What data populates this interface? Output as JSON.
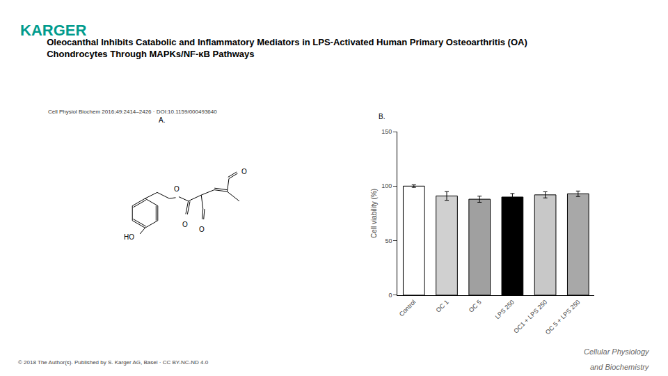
{
  "chart_data": {
    "type": "bar",
    "title": "Oleocanthal Inhibits Catabolic and Inflammatory Mediators in LPS-Activated Human Primary Osteoarthritis (OA)\nChondrocytes Through MAPKs/NF-κB Pathways",
    "subtitle": "Cell Physiol Biochem 2016;49:2414–2426 · DOI:10.1159/000493640",
    "categories": [
      "Control",
      "OC 1",
      "OC 5",
      "LPS 250",
      "OC1 + LPS 250",
      "OC 5 + LPS 250"
    ],
    "values": [
      100,
      91,
      88,
      90,
      92,
      93
    ],
    "errors": [
      1.2,
      4.0,
      2.8,
      3.2,
      2.8,
      2.5
    ],
    "colors": [
      "#ffffff",
      "#d0d0d0",
      "#a0a0a0",
      "#000000",
      "#c8c8c8",
      "#a8a8a8"
    ],
    "edgecolor": "#000000",
    "ylabel": "Cell viability (%)",
    "ylim": [
      0,
      150
    ],
    "yticks": [
      0,
      50,
      100,
      150
    ],
    "grid": false,
    "annotations": [
      {
        "text": "KARGER",
        "color": "#009B8D"
      },
      {
        "text": "A."
      },
      {
        "text": "B."
      },
      {
        "text": "HO"
      },
      {
        "text": "O"
      },
      {
        "text": "O"
      },
      {
        "text": "O"
      },
      {
        "text": "O"
      },
      {
        "text": "© 2018 The Author(s). Published by S. Karger AG, Basel · CC BY-NC-ND 4.0"
      },
      {
        "text": "Cellular Physiology"
      },
      {
        "text": "and Biochemistry"
      }
    ]
  }
}
